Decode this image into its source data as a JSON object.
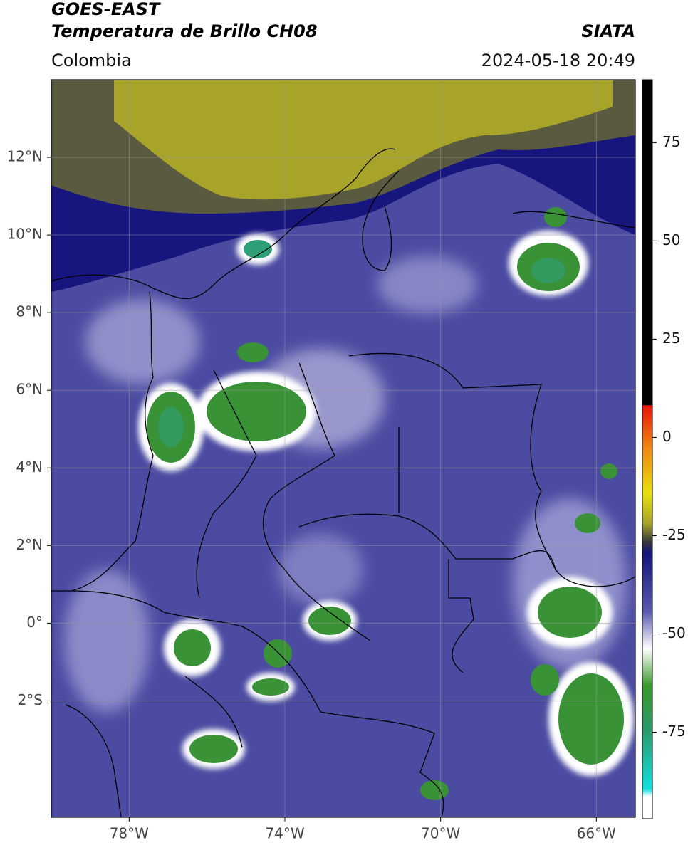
{
  "header": {
    "title": "GOES-EAST",
    "subtitle": "Temperatura de Brillo CH08",
    "region": "Colombia",
    "source": "SIATA",
    "datetime": "2024-05-18 20:49"
  },
  "map": {
    "xlim": [
      -80,
      -65
    ],
    "ylim": [
      -5,
      14
    ],
    "xticks": [
      {
        "value": -78,
        "label": "78°W"
      },
      {
        "value": -74,
        "label": "74°W"
      },
      {
        "value": -70,
        "label": "70°W"
      },
      {
        "value": -66,
        "label": "66°W"
      }
    ],
    "yticks": [
      {
        "value": 12,
        "label": "12°N"
      },
      {
        "value": 10,
        "label": "10°N"
      },
      {
        "value": 8,
        "label": "8°N"
      },
      {
        "value": 6,
        "label": "6°N"
      },
      {
        "value": 4,
        "label": "4°N"
      },
      {
        "value": 2,
        "label": "2°N"
      },
      {
        "value": 0,
        "label": "0°"
      },
      {
        "value": -2,
        "label": "2°S"
      }
    ],
    "grid": true
  },
  "colorbar": {
    "lim": [
      -97,
      91
    ],
    "ticks": [
      75,
      50,
      25,
      0,
      -25,
      -50,
      -75
    ]
  }
}
